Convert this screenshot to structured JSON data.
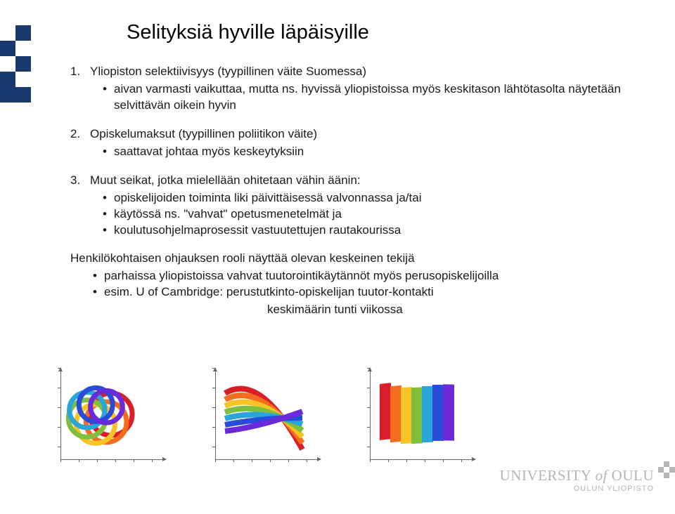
{
  "title": "Selityksiä hyville läpäisyille",
  "items": [
    {
      "num": "1.",
      "head": "Yliopiston selektiivisyys (tyypillinen väite  Suomessa)",
      "subs": [
        "aivan varmasti vaikuttaa, mutta ns. hyvissä yliopistoissa myös keskitason lähtötasolta näytetään selvittävän oikein hyvin"
      ]
    },
    {
      "num": "2.",
      "head": "Opiskelumaksut (tyypillinen poliitikon väite)",
      "subs": [
        "saattavat johtaa myös keskeytyksiin"
      ]
    },
    {
      "num": "3.",
      "head": "Muut seikat, jotka mielellään ohitetaan vähin äänin:",
      "subs": [
        "opiskelijoiden toiminta liki päivittäisessä valvonnassa  ja/tai",
        "käytössä ns. \"vahvat\" opetusmenetelmät ja",
        "koulutusohjelmaprosessit vastuutettujen rautakourissa"
      ]
    }
  ],
  "tail": {
    "head": "Henkilökohtaisen ohjauksen rooli näyttää olevan keskeinen  tekijä",
    "subs": [
      "parhaissa yliopistoissa vahvat tuutorointikäytännöt myös perusopiskelijoilla",
      "esim. U of Cambridge: perustutkinto-opiskelijan tuutor-kontakti"
    ],
    "note": "keskimäärin tunti viikossa"
  },
  "logo": {
    "line1a": "UNIVERSITY",
    "line1b": "of ",
    "line1c": "OULU",
    "line2": "OULUN YLIOPISTO"
  },
  "figures": {
    "panel_count": 3,
    "axis_color": "#666666",
    "rainbow": [
      "#d91e2a",
      "#f46d1e",
      "#f7c325",
      "#7fbf3f",
      "#2aa5d9",
      "#2a4bd9",
      "#6a2ad9"
    ]
  }
}
